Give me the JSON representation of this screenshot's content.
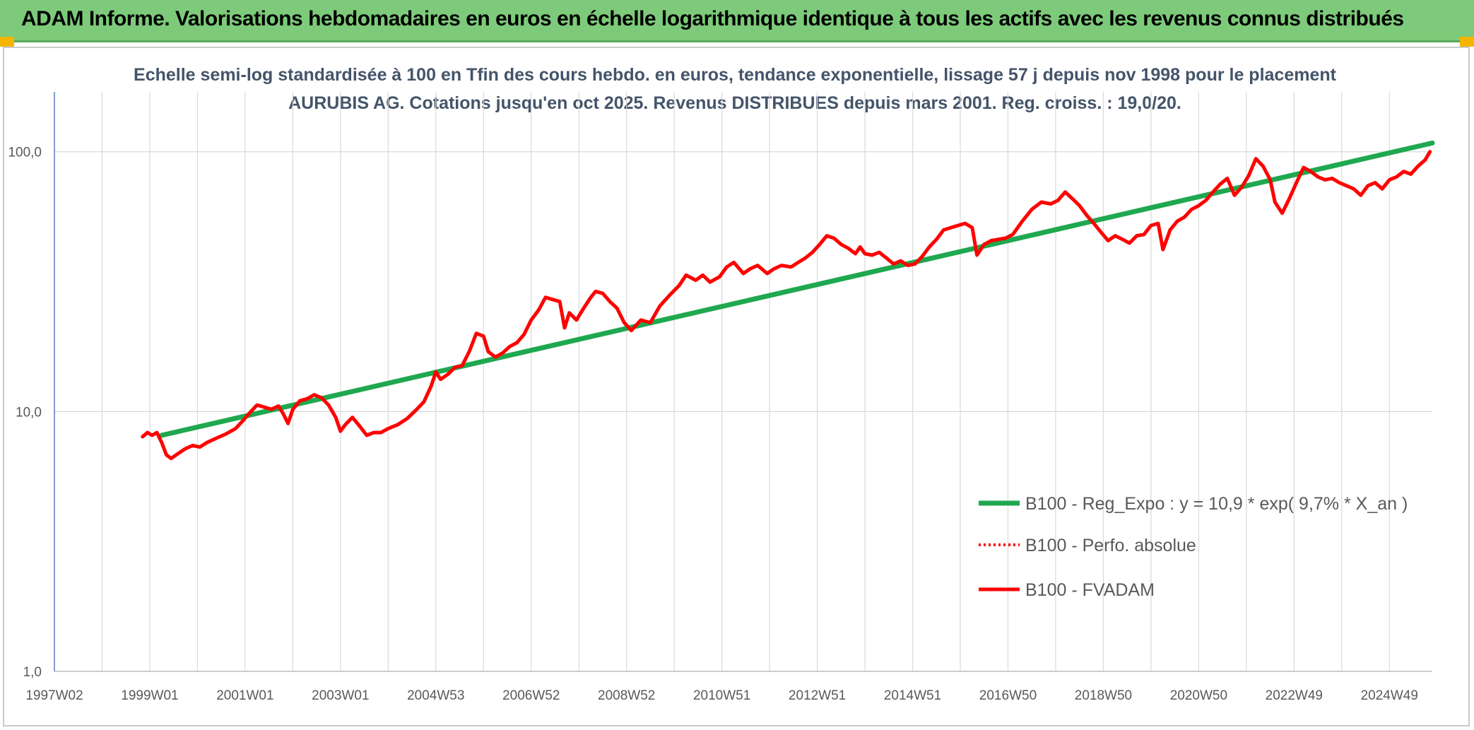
{
  "header": {
    "title": "ADAM Informe. Valorisations hebdomadaires en euros en échelle logarithmique identique à tous les actifs avec les revenus connus distribués"
  },
  "colors": {
    "accent_bar": "#7dcb7a",
    "trend": "#1fa84f",
    "price": "#ff0000",
    "grid": "#d9d9d9"
  },
  "chart_data": {
    "type": "line",
    "title": "Echelle semi-log standardisée à 100 en Tfin des cours hebdo. en euros, tendance exponentielle, lissage 57 j depuis nov 1998 pour le placement AURUBIS AG. Cotations jusqu'en oct 2025. Revenus DISTRIBUES depuis mars 2001. Reg. croiss. : 19,0/20.",
    "y_scale": "log",
    "ylim": [
      1,
      170
    ],
    "y_ticks": [
      {
        "value": 1,
        "label": "1,0"
      },
      {
        "value": 10,
        "label": "10,0"
      },
      {
        "value": 100,
        "label": "100,0"
      }
    ],
    "x_range": [
      1997.0,
      2025.9
    ],
    "x_ticks": [
      {
        "x": 1997.0,
        "label": "1997W02"
      },
      {
        "x": 1999.0,
        "label": "1999W01"
      },
      {
        "x": 2001.0,
        "label": "2001W01"
      },
      {
        "x": 2003.0,
        "label": "2003W01"
      },
      {
        "x": 2005.0,
        "label": "2004W53"
      },
      {
        "x": 2007.0,
        "label": "2006W52"
      },
      {
        "x": 2009.0,
        "label": "2008W52"
      },
      {
        "x": 2011.0,
        "label": "2010W51"
      },
      {
        "x": 2013.0,
        "label": "2012W51"
      },
      {
        "x": 2015.0,
        "label": "2014W51"
      },
      {
        "x": 2017.0,
        "label": "2016W50"
      },
      {
        "x": 2019.0,
        "label": "2018W50"
      },
      {
        "x": 2021.0,
        "label": "2020W50"
      },
      {
        "x": 2023.0,
        "label": "2022W49"
      },
      {
        "x": 2025.0,
        "label": "2024W49"
      }
    ],
    "grid": true,
    "legend_position": "right-middle",
    "series": [
      {
        "name": "B100 - Reg_Expo : y = 10,9 * exp( 9,7% *  X_an )",
        "style": "solid-green",
        "points": [
          [
            1999.25,
            8.1
          ],
          [
            2025.9,
            108.0
          ]
        ]
      },
      {
        "name": "B100 - Perfo. absolue",
        "style": "dotted-red",
        "points": []
      },
      {
        "name": "B100 - FVADAM",
        "style": "solid-red",
        "points": [
          [
            1998.85,
            8.0
          ],
          [
            1998.95,
            8.3
          ],
          [
            1999.05,
            8.1
          ],
          [
            1999.15,
            8.3
          ],
          [
            1999.25,
            7.6
          ],
          [
            1999.35,
            6.8
          ],
          [
            1999.45,
            6.6
          ],
          [
            1999.6,
            6.9
          ],
          [
            1999.75,
            7.2
          ],
          [
            1999.9,
            7.4
          ],
          [
            2000.05,
            7.3
          ],
          [
            2000.2,
            7.6
          ],
          [
            2000.4,
            7.9
          ],
          [
            2000.6,
            8.2
          ],
          [
            2000.8,
            8.6
          ],
          [
            2000.95,
            9.2
          ],
          [
            2001.1,
            9.9
          ],
          [
            2001.25,
            10.6
          ],
          [
            2001.4,
            10.4
          ],
          [
            2001.55,
            10.2
          ],
          [
            2001.7,
            10.5
          ],
          [
            2001.8,
            9.8
          ],
          [
            2001.9,
            9.0
          ],
          [
            2002.0,
            10.2
          ],
          [
            2002.15,
            11.0
          ],
          [
            2002.3,
            11.2
          ],
          [
            2002.45,
            11.6
          ],
          [
            2002.6,
            11.3
          ],
          [
            2002.75,
            10.6
          ],
          [
            2002.9,
            9.5
          ],
          [
            2003.0,
            8.4
          ],
          [
            2003.1,
            8.9
          ],
          [
            2003.25,
            9.5
          ],
          [
            2003.4,
            8.8
          ],
          [
            2003.55,
            8.1
          ],
          [
            2003.7,
            8.3
          ],
          [
            2003.85,
            8.3
          ],
          [
            2004.0,
            8.6
          ],
          [
            2004.2,
            8.9
          ],
          [
            2004.4,
            9.4
          ],
          [
            2004.6,
            10.2
          ],
          [
            2004.75,
            10.9
          ],
          [
            2004.9,
            12.5
          ],
          [
            2005.0,
            14.2
          ],
          [
            2005.1,
            13.3
          ],
          [
            2005.25,
            13.9
          ],
          [
            2005.4,
            14.8
          ],
          [
            2005.55,
            15.0
          ],
          [
            2005.7,
            17.0
          ],
          [
            2005.85,
            20.0
          ],
          [
            2006.0,
            19.5
          ],
          [
            2006.1,
            17.0
          ],
          [
            2006.25,
            16.2
          ],
          [
            2006.4,
            16.8
          ],
          [
            2006.55,
            17.8
          ],
          [
            2006.7,
            18.4
          ],
          [
            2006.85,
            19.8
          ],
          [
            2007.0,
            22.5
          ],
          [
            2007.15,
            24.5
          ],
          [
            2007.3,
            27.5
          ],
          [
            2007.45,
            27.0
          ],
          [
            2007.6,
            26.5
          ],
          [
            2007.7,
            21.0
          ],
          [
            2007.8,
            24.0
          ],
          [
            2007.95,
            22.5
          ],
          [
            2008.1,
            25.0
          ],
          [
            2008.25,
            27.5
          ],
          [
            2008.35,
            29.0
          ],
          [
            2008.5,
            28.5
          ],
          [
            2008.65,
            26.5
          ],
          [
            2008.8,
            25.0
          ],
          [
            2008.95,
            22.0
          ],
          [
            2009.1,
            20.5
          ],
          [
            2009.3,
            22.5
          ],
          [
            2009.5,
            22.0
          ],
          [
            2009.7,
            25.5
          ],
          [
            2009.9,
            28.0
          ],
          [
            2010.1,
            30.5
          ],
          [
            2010.25,
            33.5
          ],
          [
            2010.45,
            32.0
          ],
          [
            2010.6,
            33.5
          ],
          [
            2010.75,
            31.5
          ],
          [
            2010.95,
            33.0
          ],
          [
            2011.1,
            36.0
          ],
          [
            2011.25,
            37.5
          ],
          [
            2011.45,
            34.0
          ],
          [
            2011.6,
            35.5
          ],
          [
            2011.75,
            36.5
          ],
          [
            2011.95,
            34.0
          ],
          [
            2012.1,
            35.5
          ],
          [
            2012.25,
            36.5
          ],
          [
            2012.45,
            36.0
          ],
          [
            2012.6,
            37.5
          ],
          [
            2012.75,
            39.0
          ],
          [
            2012.9,
            41.0
          ],
          [
            2013.05,
            44.0
          ],
          [
            2013.2,
            47.5
          ],
          [
            2013.35,
            46.5
          ],
          [
            2013.5,
            44.0
          ],
          [
            2013.65,
            42.5
          ],
          [
            2013.8,
            40.5
          ],
          [
            2013.9,
            43.0
          ],
          [
            2014.0,
            40.5
          ],
          [
            2014.15,
            40.0
          ],
          [
            2014.3,
            41.0
          ],
          [
            2014.45,
            39.0
          ],
          [
            2014.6,
            37.0
          ],
          [
            2014.75,
            38.0
          ],
          [
            2014.9,
            36.5
          ],
          [
            2015.05,
            37.0
          ],
          [
            2015.2,
            39.5
          ],
          [
            2015.35,
            43.0
          ],
          [
            2015.5,
            46.0
          ],
          [
            2015.65,
            50.0
          ],
          [
            2015.8,
            51.0
          ],
          [
            2015.95,
            52.0
          ],
          [
            2016.1,
            53.0
          ],
          [
            2016.25,
            51.0
          ],
          [
            2016.35,
            40.0
          ],
          [
            2016.5,
            44.0
          ],
          [
            2016.65,
            45.5
          ],
          [
            2016.8,
            46.0
          ],
          [
            2016.95,
            46.5
          ],
          [
            2017.1,
            48.0
          ],
          [
            2017.3,
            54.0
          ],
          [
            2017.5,
            60.0
          ],
          [
            2017.7,
            64.0
          ],
          [
            2017.9,
            63.0
          ],
          [
            2018.05,
            65.0
          ],
          [
            2018.2,
            70.0
          ],
          [
            2018.35,
            66.0
          ],
          [
            2018.5,
            62.0
          ],
          [
            2018.65,
            57.0
          ],
          [
            2018.8,
            53.0
          ],
          [
            2018.95,
            49.0
          ],
          [
            2019.1,
            45.5
          ],
          [
            2019.25,
            47.5
          ],
          [
            2019.4,
            46.0
          ],
          [
            2019.55,
            44.5
          ],
          [
            2019.7,
            47.5
          ],
          [
            2019.85,
            48.0
          ],
          [
            2020.0,
            52.0
          ],
          [
            2020.15,
            53.0
          ],
          [
            2020.25,
            42.0
          ],
          [
            2020.4,
            50.0
          ],
          [
            2020.55,
            54.0
          ],
          [
            2020.7,
            56.0
          ],
          [
            2020.85,
            60.0
          ],
          [
            2021.0,
            62.0
          ],
          [
            2021.15,
            65.0
          ],
          [
            2021.3,
            70.0
          ],
          [
            2021.45,
            75.0
          ],
          [
            2021.6,
            79.0
          ],
          [
            2021.75,
            68.0
          ],
          [
            2021.9,
            73.0
          ],
          [
            2022.05,
            81.0
          ],
          [
            2022.2,
            94.0
          ],
          [
            2022.35,
            88.0
          ],
          [
            2022.5,
            78.0
          ],
          [
            2022.6,
            64.0
          ],
          [
            2022.75,
            58.0
          ],
          [
            2022.9,
            66.0
          ],
          [
            2023.05,
            76.0
          ],
          [
            2023.2,
            87.0
          ],
          [
            2023.35,
            84.0
          ],
          [
            2023.5,
            80.0
          ],
          [
            2023.65,
            78.0
          ],
          [
            2023.8,
            79.0
          ],
          [
            2023.95,
            76.0
          ],
          [
            2024.1,
            74.0
          ],
          [
            2024.25,
            72.0
          ],
          [
            2024.4,
            68.0
          ],
          [
            2024.55,
            74.0
          ],
          [
            2024.7,
            76.0
          ],
          [
            2024.85,
            72.0
          ],
          [
            2025.0,
            78.0
          ],
          [
            2025.15,
            80.0
          ],
          [
            2025.3,
            84.0
          ],
          [
            2025.45,
            82.0
          ],
          [
            2025.6,
            88.0
          ],
          [
            2025.75,
            93.0
          ],
          [
            2025.85,
            100.0
          ]
        ]
      }
    ]
  }
}
